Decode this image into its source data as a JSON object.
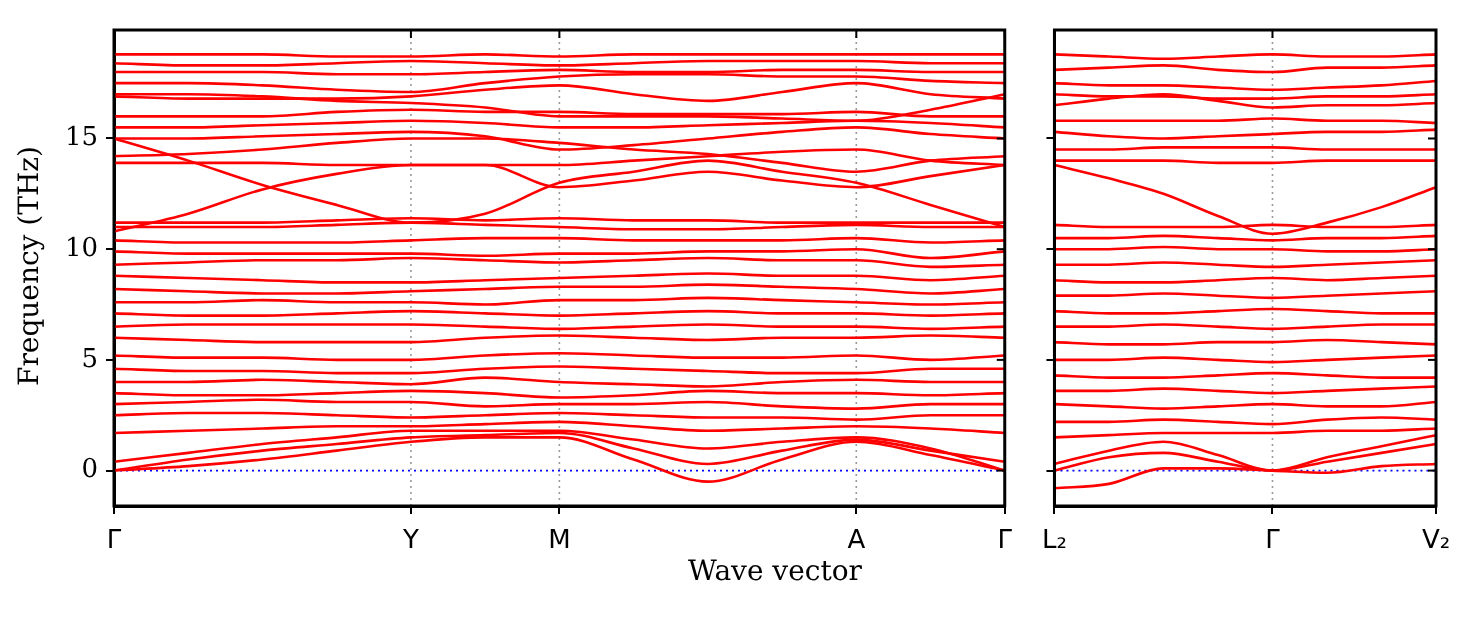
{
  "chart_data": [
    {
      "type": "line",
      "xlabel": "Wave vector",
      "ylabel": "Frequency (THz)",
      "color": "#ff0000",
      "legend": false,
      "grid": false,
      "categories": [
        "Γ",
        null,
        null,
        null,
        "Y",
        null,
        "M",
        null,
        null,
        null,
        "A",
        null,
        "Γ"
      ],
      "ylim": [
        -1.6,
        19.9
      ],
      "yticks": [
        0,
        5,
        10,
        15
      ],
      "ref_lines": [
        {
          "axis": "y",
          "value": 0,
          "color": "#0000ff",
          "line_style": "dotted"
        },
        {
          "axis": "x",
          "value": "Y",
          "color": "#999999",
          "line_style": "dotted"
        },
        {
          "axis": "x",
          "value": "M",
          "color": "#999999",
          "line_style": "dotted"
        },
        {
          "axis": "x",
          "value": "A",
          "color": "#999999",
          "line_style": "dotted"
        }
      ],
      "series": [
        {
          "values": [
            0,
            0.2,
            0.5,
            0.9,
            1.3,
            1.5,
            1.5,
            0.5,
            -0.5,
            0.5,
            1.3,
            0.7,
            0
          ]
        },
        {
          "values": [
            0,
            0.5,
            0.9,
            1.2,
            1.5,
            1.6,
            1.7,
            1.0,
            0.3,
            0.9,
            1.4,
            0.9,
            0.4
          ]
        },
        {
          "values": [
            0.4,
            0.8,
            1.2,
            1.5,
            1.8,
            1.8,
            1.8,
            1.4,
            1.0,
            1.3,
            1.5,
            1.0,
            0
          ]
        },
        {
          "values": [
            1.7,
            1.8,
            1.9,
            2.0,
            2.0,
            2.1,
            2.2,
            2.0,
            1.8,
            1.9,
            2.0,
            1.9,
            1.7
          ]
        },
        {
          "values": [
            2.5,
            2.6,
            2.6,
            2.5,
            2.4,
            2.5,
            2.6,
            2.5,
            2.4,
            2.4,
            2.3,
            2.5,
            2.5
          ]
        },
        {
          "values": [
            3.0,
            3.1,
            3.2,
            3.1,
            3.1,
            2.9,
            3.0,
            3.0,
            3.1,
            2.9,
            2.8,
            3.0,
            3.0
          ]
        },
        {
          "values": [
            3.5,
            3.4,
            3.4,
            3.5,
            3.6,
            3.5,
            3.3,
            3.4,
            3.6,
            3.5,
            3.5,
            3.4,
            3.5
          ]
        },
        {
          "values": [
            4.0,
            4.0,
            4.1,
            4.0,
            3.9,
            4.2,
            4.0,
            3.9,
            3.8,
            4.0,
            4.1,
            4.0,
            4.0
          ]
        },
        {
          "values": [
            4.6,
            4.5,
            4.5,
            4.4,
            4.4,
            4.6,
            4.7,
            4.6,
            4.5,
            4.4,
            4.4,
            4.6,
            4.6
          ]
        },
        {
          "values": [
            5.2,
            5.1,
            5.1,
            5.0,
            5.0,
            5.2,
            5.3,
            5.2,
            5.1,
            5.1,
            5.2,
            5.0,
            5.2
          ]
        },
        {
          "values": [
            6.0,
            5.9,
            5.8,
            5.8,
            5.8,
            6.0,
            6.1,
            6.0,
            5.9,
            6.0,
            6.0,
            6.1,
            6.0
          ]
        },
        {
          "values": [
            6.5,
            6.6,
            6.6,
            6.6,
            6.6,
            6.5,
            6.4,
            6.5,
            6.6,
            6.5,
            6.5,
            6.4,
            6.5
          ]
        },
        {
          "values": [
            7.1,
            7.0,
            7.0,
            7.1,
            7.2,
            7.1,
            7.0,
            7.1,
            7.2,
            7.1,
            7.1,
            7.0,
            7.1
          ]
        },
        {
          "values": [
            7.6,
            7.6,
            7.7,
            7.6,
            7.6,
            7.5,
            7.7,
            7.7,
            7.8,
            7.7,
            7.6,
            7.5,
            7.6
          ]
        },
        {
          "values": [
            8.2,
            8.1,
            8.0,
            8.0,
            8.1,
            8.2,
            8.3,
            8.3,
            8.4,
            8.3,
            8.2,
            8.0,
            8.2
          ]
        },
        {
          "values": [
            8.8,
            8.7,
            8.6,
            8.5,
            8.5,
            8.6,
            8.7,
            8.8,
            8.9,
            8.8,
            8.8,
            8.6,
            8.8
          ]
        },
        {
          "values": [
            9.3,
            9.4,
            9.5,
            9.5,
            9.6,
            9.5,
            9.4,
            9.5,
            9.6,
            9.5,
            9.5,
            9.2,
            9.3
          ]
        },
        {
          "values": [
            9.9,
            9.8,
            9.8,
            9.8,
            9.8,
            9.7,
            9.8,
            9.8,
            9.9,
            9.9,
            10.0,
            9.6,
            9.9
          ]
        },
        {
          "values": [
            10.4,
            10.3,
            10.3,
            10.3,
            10.4,
            10.5,
            10.5,
            10.4,
            10.4,
            10.4,
            10.5,
            10.3,
            10.4
          ]
        },
        {
          "values": [
            10.8,
            11.6,
            12.7,
            13.4,
            13.8,
            13.8,
            13.8,
            14.0,
            14.2,
            14.4,
            14.5,
            14.0,
            13.8
          ]
        },
        {
          "values": [
            11.0,
            11.0,
            11.0,
            11.1,
            11.2,
            11.1,
            11.0,
            10.9,
            10.9,
            11.0,
            11.1,
            11.0,
            11.0
          ]
        },
        {
          "values": [
            11.2,
            11.2,
            11.2,
            11.3,
            11.4,
            11.3,
            11.4,
            11.3,
            11.3,
            11.2,
            11.2,
            11.2,
            11.2
          ]
        },
        {
          "values": [
            15.0,
            14.0,
            12.9,
            12.0,
            11.2,
            11.6,
            13.0,
            13.5,
            14.0,
            13.5,
            13.0,
            12.0,
            11.0
          ]
        },
        {
          "values": [
            13.9,
            13.9,
            13.9,
            13.8,
            13.8,
            13.8,
            12.8,
            13.1,
            13.5,
            13.1,
            12.8,
            13.3,
            13.8
          ]
        },
        {
          "values": [
            14.2,
            14.3,
            14.5,
            14.8,
            15.0,
            15.0,
            14.8,
            14.5,
            14.3,
            13.9,
            13.5,
            14.0,
            14.2
          ]
        },
        {
          "values": [
            15.0,
            15.0,
            15.1,
            15.2,
            15.3,
            15.1,
            14.5,
            14.7,
            15.0,
            15.3,
            15.5,
            15.2,
            15.0
          ]
        },
        {
          "values": [
            15.5,
            15.5,
            15.6,
            15.7,
            15.8,
            15.7,
            15.5,
            15.5,
            15.6,
            15.7,
            15.8,
            15.7,
            15.5
          ]
        },
        {
          "values": [
            16.0,
            16.0,
            16.0,
            16.2,
            16.3,
            16.2,
            16.2,
            16.1,
            16.1,
            16.1,
            16.2,
            16.0,
            16.0
          ]
        },
        {
          "values": [
            16.9,
            16.8,
            16.8,
            16.8,
            16.9,
            17.2,
            17.4,
            17.0,
            16.7,
            17.1,
            17.5,
            17.0,
            16.8
          ]
        },
        {
          "values": [
            17.0,
            17.0,
            16.9,
            16.7,
            16.6,
            16.4,
            16.0,
            16.0,
            16.0,
            15.9,
            15.8,
            16.3,
            17.0
          ]
        },
        {
          "values": [
            17.5,
            17.5,
            17.4,
            17.2,
            17.1,
            17.5,
            17.8,
            17.9,
            17.9,
            17.8,
            17.8,
            17.6,
            17.5
          ]
        },
        {
          "values": [
            18.0,
            18.0,
            18.0,
            17.9,
            17.9,
            18.0,
            18.1,
            18.0,
            18.0,
            18.1,
            18.1,
            18.0,
            18.0
          ]
        },
        {
          "values": [
            18.4,
            18.3,
            18.3,
            18.4,
            18.5,
            18.4,
            18.3,
            18.4,
            18.5,
            18.5,
            18.5,
            18.4,
            18.4
          ]
        },
        {
          "values": [
            18.8,
            18.8,
            18.8,
            18.7,
            18.7,
            18.8,
            18.7,
            18.8,
            18.8,
            18.8,
            18.8,
            18.8,
            18.8
          ]
        }
      ]
    },
    {
      "type": "line",
      "color": "#ff0000",
      "legend": false,
      "grid": false,
      "tick_labels": "x",
      "categories": [
        "L₂",
        null,
        null,
        null,
        "Γ",
        null,
        null,
        "V₂"
      ],
      "ylim": [
        -1.6,
        19.9
      ],
      "yticks": [
        0,
        5,
        10,
        15
      ],
      "ref_lines": [
        {
          "axis": "y",
          "value": 0,
          "color": "#0000ff",
          "line_style": "dotted"
        },
        {
          "axis": "x",
          "value": "Γ",
          "color": "#999999",
          "line_style": "dotted"
        }
      ],
      "series": [
        {
          "values": [
            -0.8,
            -0.6,
            0.1,
            0.1,
            0,
            -0.1,
            0.2,
            0.3
          ]
        },
        {
          "values": [
            0,
            0.6,
            0.8,
            0.4,
            0,
            0.4,
            0.8,
            1.2
          ]
        },
        {
          "values": [
            0.3,
            0.9,
            1.3,
            0.7,
            0,
            0.6,
            1.1,
            1.6
          ]
        },
        {
          "values": [
            1.5,
            1.6,
            1.7,
            1.7,
            1.7,
            1.8,
            1.8,
            1.9
          ]
        },
        {
          "values": [
            2.2,
            2.2,
            2.3,
            2.2,
            2.1,
            2.3,
            2.4,
            2.3
          ]
        },
        {
          "values": [
            3.0,
            2.9,
            2.8,
            2.9,
            3.0,
            2.9,
            2.9,
            3.1
          ]
        },
        {
          "values": [
            3.6,
            3.6,
            3.7,
            3.6,
            3.5,
            3.6,
            3.7,
            3.8
          ]
        },
        {
          "values": [
            4.3,
            4.2,
            4.2,
            4.3,
            4.4,
            4.3,
            4.2,
            4.2
          ]
        },
        {
          "values": [
            5.0,
            5.0,
            5.1,
            5.0,
            4.9,
            5.0,
            5.1,
            5.2
          ]
        },
        {
          "values": [
            5.8,
            5.7,
            5.7,
            5.8,
            5.8,
            5.9,
            5.8,
            5.7
          ]
        },
        {
          "values": [
            6.5,
            6.5,
            6.6,
            6.5,
            6.4,
            6.5,
            6.6,
            6.6
          ]
        },
        {
          "values": [
            7.2,
            7.1,
            7.1,
            7.2,
            7.3,
            7.2,
            7.1,
            7.1
          ]
        },
        {
          "values": [
            7.9,
            7.9,
            8.0,
            7.9,
            7.8,
            7.9,
            8.0,
            8.1
          ]
        },
        {
          "values": [
            8.6,
            8.5,
            8.5,
            8.6,
            8.7,
            8.6,
            8.7,
            8.8
          ]
        },
        {
          "values": [
            9.3,
            9.3,
            9.4,
            9.3,
            9.2,
            9.3,
            9.4,
            9.5
          ]
        },
        {
          "values": [
            10.0,
            10.0,
            10.1,
            10.0,
            10.0,
            9.9,
            9.9,
            10.0
          ]
        },
        {
          "values": [
            10.5,
            10.5,
            10.6,
            10.5,
            10.4,
            10.5,
            10.5,
            10.6
          ]
        },
        {
          "values": [
            11.1,
            11.0,
            11.0,
            11.0,
            11.1,
            11.0,
            11.0,
            11.1
          ]
        },
        {
          "values": [
            13.8,
            13.2,
            12.5,
            11.5,
            10.7,
            11.2,
            11.9,
            12.8
          ]
        },
        {
          "values": [
            14.0,
            14.0,
            14.0,
            13.9,
            13.9,
            14.0,
            14.0,
            14.0
          ]
        },
        {
          "values": [
            14.5,
            14.5,
            14.6,
            14.6,
            14.6,
            14.5,
            14.5,
            14.5
          ]
        },
        {
          "values": [
            15.3,
            15.1,
            15.0,
            15.1,
            15.2,
            15.3,
            15.3,
            15.4
          ]
        },
        {
          "values": [
            15.8,
            15.8,
            15.8,
            15.8,
            15.9,
            15.8,
            15.8,
            15.7
          ]
        },
        {
          "values": [
            16.5,
            16.8,
            17.0,
            16.7,
            16.4,
            16.5,
            16.5,
            16.6
          ]
        },
        {
          "values": [
            17.0,
            16.9,
            16.9,
            16.8,
            16.8,
            16.9,
            16.9,
            17.0
          ]
        },
        {
          "values": [
            17.5,
            17.4,
            17.4,
            17.3,
            17.2,
            17.3,
            17.4,
            17.6
          ]
        },
        {
          "values": [
            18.1,
            18.2,
            18.3,
            18.1,
            18.0,
            18.2,
            18.2,
            18.3
          ]
        },
        {
          "values": [
            18.8,
            18.7,
            18.6,
            18.7,
            18.8,
            18.7,
            18.7,
            18.8
          ]
        }
      ]
    }
  ]
}
